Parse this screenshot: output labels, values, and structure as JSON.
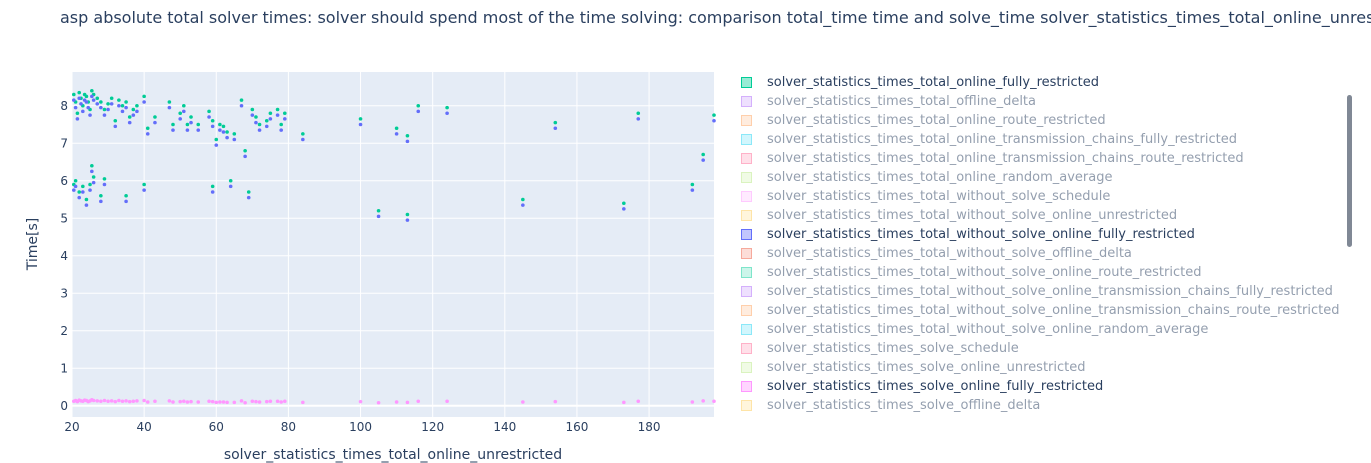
{
  "page": {
    "title": "asp absolute total solver times:  solver should spend most of the time solving: comparison total_time time and solve_time  solver_statistics_times_total_online_unrestricted"
  },
  "chart_data": {
    "type": "scatter",
    "xlabel": "solver_statistics_times_total_online_unrestricted",
    "ylabel": "Time[s]",
    "xlim": [
      20,
      198
    ],
    "ylim": [
      -0.3,
      8.9
    ],
    "x_ticks": [
      20,
      40,
      60,
      80,
      100,
      120,
      140,
      160,
      180
    ],
    "y_ticks": [
      0,
      1,
      2,
      3,
      4,
      5,
      6,
      7,
      8
    ],
    "plot_background": "#e5ecf6",
    "grid": true,
    "legend_position": "right",
    "legend": [
      {
        "name": "solver_statistics_times_total_online_fully_restricted",
        "color": "#00cc96",
        "visible": true
      },
      {
        "name": "solver_statistics_times_total_offline_delta",
        "color": "#ab63fa",
        "visible": false
      },
      {
        "name": "solver_statistics_times_total_online_route_restricted",
        "color": "#ffa15a",
        "visible": false
      },
      {
        "name": "solver_statistics_times_total_online_transmission_chains_fully_restricted",
        "color": "#19d3f3",
        "visible": false
      },
      {
        "name": "solver_statistics_times_total_online_transmission_chains_route_restricted",
        "color": "#ff6692",
        "visible": false
      },
      {
        "name": "solver_statistics_times_total_online_random_average",
        "color": "#b6e880",
        "visible": false
      },
      {
        "name": "solver_statistics_times_total_without_solve_schedule",
        "color": "#ff97ff",
        "visible": false
      },
      {
        "name": "solver_statistics_times_total_without_solve_online_unrestricted",
        "color": "#fecb52",
        "visible": false
      },
      {
        "name": "solver_statistics_times_total_without_solve_online_fully_restricted",
        "color": "#636efa",
        "visible": true
      },
      {
        "name": "solver_statistics_times_total_without_solve_offline_delta",
        "color": "#ef553b",
        "visible": false
      },
      {
        "name": "solver_statistics_times_total_without_solve_online_route_restricted",
        "color": "#00cc96",
        "visible": false
      },
      {
        "name": "solver_statistics_times_total_without_solve_online_transmission_chains_fully_restricted",
        "color": "#ab63fa",
        "visible": false
      },
      {
        "name": "solver_statistics_times_total_without_solve_online_transmission_chains_route_restricted",
        "color": "#ffa15a",
        "visible": false
      },
      {
        "name": "solver_statistics_times_total_without_solve_online_random_average",
        "color": "#19d3f3",
        "visible": false
      },
      {
        "name": "solver_statistics_times_solve_schedule",
        "color": "#ff6692",
        "visible": false
      },
      {
        "name": "solver_statistics_times_solve_online_unrestricted",
        "color": "#b6e880",
        "visible": false
      },
      {
        "name": "solver_statistics_times_solve_online_fully_restricted",
        "color": "#ff97ff",
        "visible": true
      },
      {
        "name": "solver_statistics_times_solve_offline_delta",
        "color": "#fecb52",
        "visible": false
      }
    ],
    "series": [
      {
        "name": "solver_statistics_times_total_online_fully_restricted",
        "color": "#00cc96",
        "points": [
          [
            20.5,
            8.3
          ],
          [
            21,
            8.1
          ],
          [
            21.5,
            7.8
          ],
          [
            22,
            8.35
          ],
          [
            22.5,
            8.2
          ],
          [
            23,
            8.0
          ],
          [
            23.5,
            8.3
          ],
          [
            24,
            8.25
          ],
          [
            24.5,
            8.1
          ],
          [
            25,
            7.9
          ],
          [
            25.5,
            8.4
          ],
          [
            26,
            8.3
          ],
          [
            27,
            8.2
          ],
          [
            28,
            8.1
          ],
          [
            29,
            7.9
          ],
          [
            30,
            8.05
          ],
          [
            31,
            8.2
          ],
          [
            32,
            7.6
          ],
          [
            33,
            8.15
          ],
          [
            34,
            8.0
          ],
          [
            35,
            8.1
          ],
          [
            36,
            7.7
          ],
          [
            37,
            7.9
          ],
          [
            38,
            8.0
          ],
          [
            40,
            8.25
          ],
          [
            41,
            7.4
          ],
          [
            43,
            7.7
          ],
          [
            47,
            8.1
          ],
          [
            48,
            7.5
          ],
          [
            50,
            7.8
          ],
          [
            51,
            8.0
          ],
          [
            52,
            7.5
          ],
          [
            53,
            7.7
          ],
          [
            55,
            7.5
          ],
          [
            58,
            7.85
          ],
          [
            59,
            7.6
          ],
          [
            60,
            7.1
          ],
          [
            61,
            7.5
          ],
          [
            62,
            7.45
          ],
          [
            63,
            7.3
          ],
          [
            65,
            7.25
          ],
          [
            67,
            8.15
          ],
          [
            68,
            6.8
          ],
          [
            70,
            7.9
          ],
          [
            71,
            7.7
          ],
          [
            72,
            7.5
          ],
          [
            74,
            7.6
          ],
          [
            75,
            7.8
          ],
          [
            77,
            7.9
          ],
          [
            78,
            7.5
          ],
          [
            79,
            7.8
          ],
          [
            84,
            7.25
          ],
          [
            100,
            7.65
          ],
          [
            110,
            7.4
          ],
          [
            113,
            7.2
          ],
          [
            116,
            8.0
          ],
          [
            124,
            7.95
          ],
          [
            154,
            7.55
          ],
          [
            177,
            7.8
          ],
          [
            198,
            7.75
          ],
          [
            20.5,
            5.9
          ],
          [
            21,
            6.0
          ],
          [
            22,
            5.7
          ],
          [
            23,
            5.85
          ],
          [
            24,
            5.5
          ],
          [
            25,
            5.9
          ],
          [
            25.5,
            6.4
          ],
          [
            26,
            6.1
          ],
          [
            28,
            5.6
          ],
          [
            29,
            6.05
          ],
          [
            35,
            5.6
          ],
          [
            40,
            5.9
          ],
          [
            59,
            5.85
          ],
          [
            64,
            6.0
          ],
          [
            69,
            5.7
          ],
          [
            105,
            5.2
          ],
          [
            113,
            5.1
          ],
          [
            145,
            5.5
          ],
          [
            173,
            5.4
          ],
          [
            192,
            5.9
          ],
          [
            195,
            6.7
          ]
        ]
      },
      {
        "name": "solver_statistics_times_total_without_solve_online_fully_restricted",
        "color": "#636efa",
        "points": [
          [
            20.5,
            8.15
          ],
          [
            21,
            7.95
          ],
          [
            21.5,
            7.65
          ],
          [
            22,
            8.2
          ],
          [
            22.5,
            8.05
          ],
          [
            23,
            7.85
          ],
          [
            23.5,
            8.15
          ],
          [
            24,
            8.1
          ],
          [
            24.5,
            7.95
          ],
          [
            25,
            7.75
          ],
          [
            25.5,
            8.25
          ],
          [
            26,
            8.15
          ],
          [
            27,
            8.05
          ],
          [
            28,
            7.95
          ],
          [
            29,
            7.75
          ],
          [
            30,
            7.9
          ],
          [
            31,
            8.05
          ],
          [
            32,
            7.45
          ],
          [
            33,
            8.0
          ],
          [
            34,
            7.85
          ],
          [
            35,
            7.95
          ],
          [
            36,
            7.55
          ],
          [
            37,
            7.75
          ],
          [
            38,
            7.85
          ],
          [
            40,
            8.1
          ],
          [
            41,
            7.25
          ],
          [
            43,
            7.55
          ],
          [
            47,
            7.95
          ],
          [
            48,
            7.35
          ],
          [
            50,
            7.65
          ],
          [
            51,
            7.85
          ],
          [
            52,
            7.35
          ],
          [
            53,
            7.55
          ],
          [
            55,
            7.35
          ],
          [
            58,
            7.7
          ],
          [
            59,
            7.45
          ],
          [
            60,
            6.95
          ],
          [
            61,
            7.35
          ],
          [
            62,
            7.3
          ],
          [
            63,
            7.15
          ],
          [
            65,
            7.1
          ],
          [
            67,
            8.0
          ],
          [
            68,
            6.65
          ],
          [
            70,
            7.75
          ],
          [
            71,
            7.55
          ],
          [
            72,
            7.35
          ],
          [
            74,
            7.45
          ],
          [
            75,
            7.65
          ],
          [
            77,
            7.75
          ],
          [
            78,
            7.35
          ],
          [
            79,
            7.65
          ],
          [
            84,
            7.1
          ],
          [
            100,
            7.5
          ],
          [
            110,
            7.25
          ],
          [
            113,
            7.05
          ],
          [
            116,
            7.85
          ],
          [
            124,
            7.8
          ],
          [
            154,
            7.4
          ],
          [
            177,
            7.65
          ],
          [
            198,
            7.6
          ],
          [
            20.5,
            5.75
          ],
          [
            21,
            5.85
          ],
          [
            22,
            5.55
          ],
          [
            23,
            5.7
          ],
          [
            24,
            5.35
          ],
          [
            25,
            5.75
          ],
          [
            25.5,
            6.25
          ],
          [
            26,
            5.95
          ],
          [
            28,
            5.45
          ],
          [
            29,
            5.9
          ],
          [
            35,
            5.45
          ],
          [
            40,
            5.75
          ],
          [
            59,
            5.7
          ],
          [
            64,
            5.85
          ],
          [
            69,
            5.55
          ],
          [
            105,
            5.05
          ],
          [
            113,
            4.95
          ],
          [
            145,
            5.35
          ],
          [
            173,
            5.25
          ],
          [
            192,
            5.75
          ],
          [
            195,
            6.55
          ]
        ]
      },
      {
        "name": "solver_statistics_times_solve_online_fully_restricted",
        "color": "#ff97ff",
        "points": [
          [
            20.5,
            0.12
          ],
          [
            21,
            0.14
          ],
          [
            21.5,
            0.11
          ],
          [
            22,
            0.15
          ],
          [
            22.5,
            0.13
          ],
          [
            23,
            0.12
          ],
          [
            23.5,
            0.15
          ],
          [
            24,
            0.14
          ],
          [
            24.5,
            0.11
          ],
          [
            25,
            0.13
          ],
          [
            25.5,
            0.16
          ],
          [
            26,
            0.14
          ],
          [
            27,
            0.13
          ],
          [
            28,
            0.12
          ],
          [
            29,
            0.14
          ],
          [
            30,
            0.12
          ],
          [
            31,
            0.13
          ],
          [
            32,
            0.11
          ],
          [
            33,
            0.14
          ],
          [
            34,
            0.12
          ],
          [
            35,
            0.13
          ],
          [
            36,
            0.11
          ],
          [
            37,
            0.12
          ],
          [
            38,
            0.13
          ],
          [
            40,
            0.14
          ],
          [
            41,
            0.1
          ],
          [
            43,
            0.12
          ],
          [
            47,
            0.13
          ],
          [
            48,
            0.1
          ],
          [
            50,
            0.11
          ],
          [
            51,
            0.12
          ],
          [
            52,
            0.1
          ],
          [
            53,
            0.11
          ],
          [
            55,
            0.1
          ],
          [
            58,
            0.12
          ],
          [
            59,
            0.11
          ],
          [
            60,
            0.09
          ],
          [
            61,
            0.1
          ],
          [
            62,
            0.1
          ],
          [
            63,
            0.09
          ],
          [
            65,
            0.09
          ],
          [
            67,
            0.13
          ],
          [
            68,
            0.08
          ],
          [
            70,
            0.12
          ],
          [
            71,
            0.11
          ],
          [
            72,
            0.1
          ],
          [
            74,
            0.11
          ],
          [
            75,
            0.12
          ],
          [
            77,
            0.12
          ],
          [
            78,
            0.1
          ],
          [
            79,
            0.12
          ],
          [
            84,
            0.09
          ],
          [
            100,
            0.11
          ],
          [
            105,
            0.08
          ],
          [
            110,
            0.1
          ],
          [
            113,
            0.09
          ],
          [
            116,
            0.12
          ],
          [
            124,
            0.12
          ],
          [
            145,
            0.1
          ],
          [
            154,
            0.11
          ],
          [
            173,
            0.09
          ],
          [
            177,
            0.12
          ],
          [
            192,
            0.1
          ],
          [
            195,
            0.13
          ],
          [
            198,
            0.12
          ]
        ]
      }
    ]
  }
}
